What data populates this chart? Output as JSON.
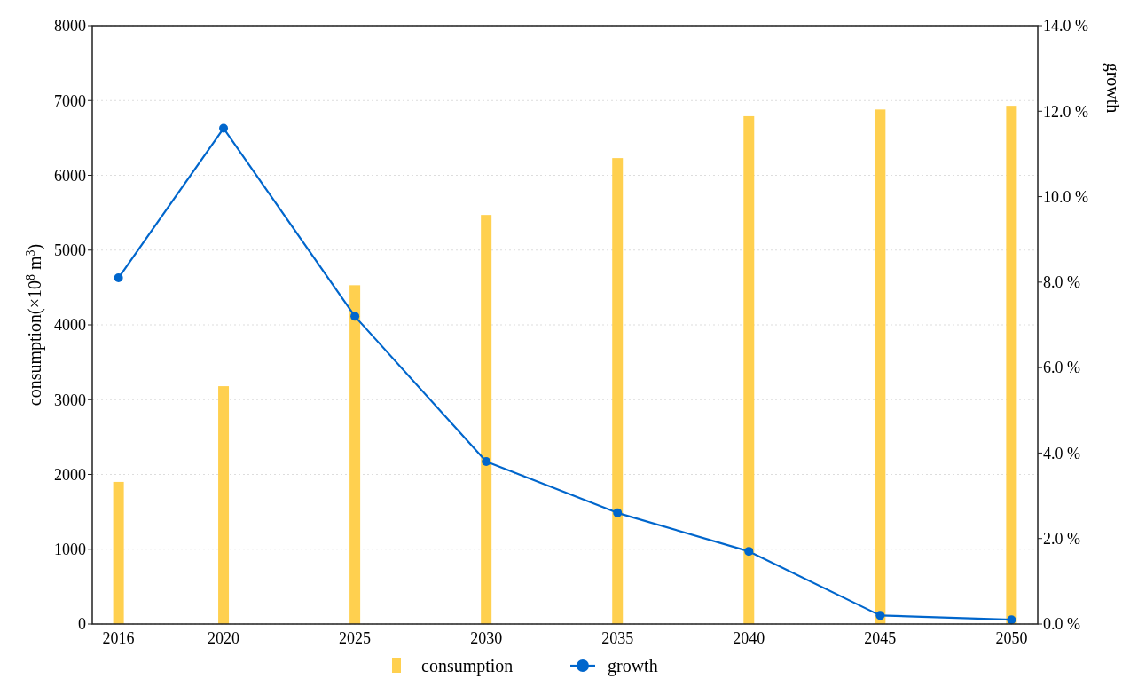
{
  "chart_data": {
    "type": "bar",
    "ylabel": "consumption(×10$^{8}$ m$^{3}$)",
    "y2label": "growth",
    "x": [
      2016,
      2020,
      2025,
      2030,
      2035,
      2040,
      2045,
      2050
    ],
    "xlim": [
      2015,
      2051
    ],
    "xticks": [
      2016,
      2020,
      2025,
      2030,
      2035,
      2040,
      2045,
      2050
    ],
    "ylim": [
      0,
      8000
    ],
    "yticks": [
      0,
      1000,
      2000,
      3000,
      4000,
      5000,
      6000,
      7000,
      8000
    ],
    "y2lim": [
      0,
      14
    ],
    "y2ticks": [
      {
        "value": 0,
        "label": "0.0 %"
      },
      {
        "value": 2,
        "label": "2.0 %"
      },
      {
        "value": 4,
        "label": "4.0 %"
      },
      {
        "value": 6,
        "label": "6.0 %"
      },
      {
        "value": 8,
        "label": "8.0 %"
      },
      {
        "value": 10,
        "label": "10.0 %"
      },
      {
        "value": 12,
        "label": "12.0 %"
      },
      {
        "value": 14,
        "label": "14.0 %"
      }
    ],
    "series": [
      {
        "name": "consumption",
        "color": "#ffd04f",
        "values": [
          1900,
          3180,
          4530,
          5470,
          6230,
          6790,
          6880,
          6930
        ]
      },
      {
        "name": "growth",
        "type": "line",
        "axis": "y2",
        "color": "#0066cc",
        "marker": "circle",
        "line_style": "solid",
        "values": [
          8.1,
          11.6,
          7.2,
          3.8,
          2.6,
          1.7,
          0.2,
          0.1
        ]
      }
    ],
    "grid": "y",
    "legend": "bottom"
  }
}
